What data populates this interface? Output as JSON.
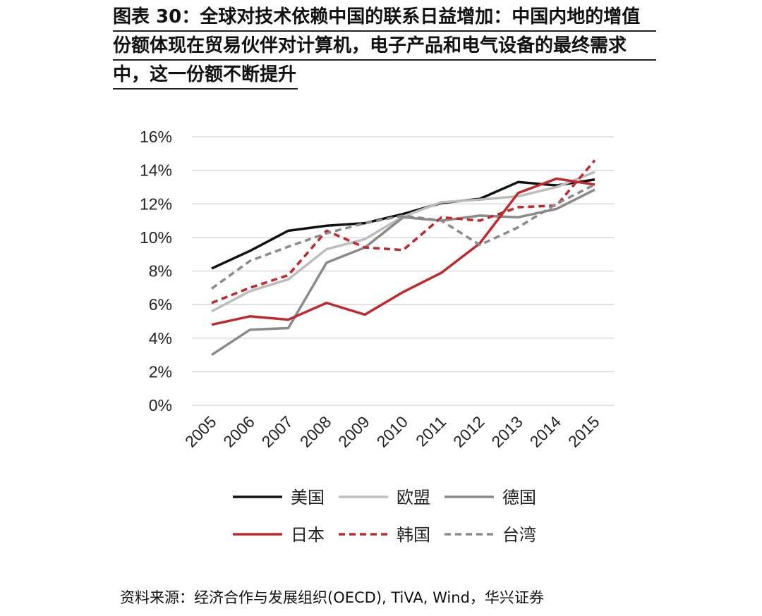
{
  "title_lines": [
    "图表 30：全球对技术依赖中国的联系日益增加：中国内地的增值",
    "份额体现在贸易伙伴对计算机，电子产品和电气设备的最终需求",
    "中，这一份额不断提升"
  ],
  "source": "资料来源：经济合作与发展组织(OECD), TiVA, Wind，华兴证券",
  "chart_data": {
    "type": "line",
    "x": [
      "2005",
      "2006",
      "2007",
      "2008",
      "2009",
      "2010",
      "2011",
      "2012",
      "2013",
      "2014",
      "2015"
    ],
    "ylim": [
      0,
      16
    ],
    "yticks": [
      "0%",
      "2%",
      "4%",
      "6%",
      "8%",
      "10%",
      "12%",
      "14%",
      "16%"
    ],
    "grid": true,
    "legend": "bottom",
    "series": [
      {
        "name": "美国",
        "color": "#111111",
        "dash": false,
        "values": [
          8.15,
          9.2,
          10.4,
          10.7,
          10.85,
          11.4,
          12.05,
          12.3,
          13.3,
          13.1,
          13.45
        ]
      },
      {
        "name": "欧盟",
        "color": "#bdbdbd",
        "dash": false,
        "values": [
          5.6,
          6.8,
          7.5,
          9.3,
          9.9,
          11.25,
          12.1,
          12.25,
          12.45,
          13.0,
          13.9
        ]
      },
      {
        "name": "德国",
        "color": "#8a8a8a",
        "dash": false,
        "values": [
          3.0,
          4.5,
          4.6,
          8.5,
          9.4,
          11.2,
          11.0,
          11.3,
          11.2,
          11.7,
          12.85
        ]
      },
      {
        "name": "日本",
        "color": "#c0282d",
        "dash": false,
        "values": [
          4.8,
          5.3,
          5.1,
          6.1,
          5.4,
          6.75,
          7.9,
          9.65,
          12.65,
          13.5,
          13.15
        ]
      },
      {
        "name": "韩国",
        "color": "#c0282d",
        "dash": true,
        "values": [
          6.1,
          7.0,
          7.75,
          10.4,
          9.4,
          9.25,
          11.2,
          11.0,
          11.8,
          11.9,
          14.6
        ]
      },
      {
        "name": "台湾",
        "color": "#8a8a8a",
        "dash": true,
        "values": [
          6.95,
          8.6,
          9.45,
          10.25,
          10.85,
          11.3,
          11.0,
          9.55,
          10.6,
          12.0,
          13.15
        ]
      }
    ]
  }
}
